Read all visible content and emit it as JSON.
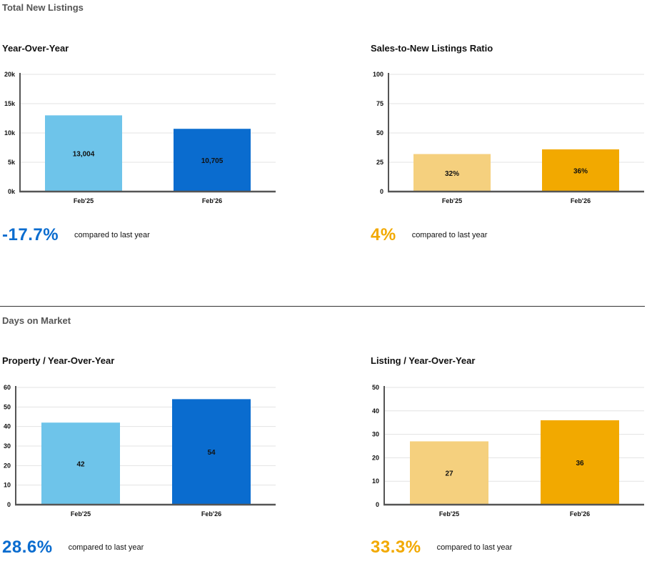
{
  "sections": {
    "new_listings": {
      "title": "Total New Listings"
    },
    "days_on_market": {
      "title": "Days on Market"
    }
  },
  "charts": {
    "yoy": {
      "title": "Year-Over-Year"
    },
    "ratio": {
      "title": "Sales-to-New Listings Ratio"
    },
    "property": {
      "title": "Property / Year-Over-Year"
    },
    "listing": {
      "title": "Listing / Year-Over-Year"
    }
  },
  "stats": {
    "yoy": {
      "value": "-17.7%",
      "text": "compared to last year",
      "color": "#0a6ccf"
    },
    "ratio": {
      "value": "4%",
      "text": "compared to last year",
      "color": "#f2a900"
    },
    "property": {
      "value": "28.6%",
      "text": "compared to last year",
      "color": "#0a6ccf"
    },
    "listing": {
      "value": "33.3%",
      "text": "compared to last year",
      "color": "#f2a900"
    }
  },
  "chart_data": [
    {
      "id": "yoy",
      "type": "bar",
      "title": "Year-Over-Year",
      "categories": [
        "Feb'25",
        "Feb'26"
      ],
      "values": [
        13004,
        10705
      ],
      "value_labels": [
        "13,004",
        "10,705"
      ],
      "ylim": [
        0,
        20000
      ],
      "yticks": [
        0,
        5000,
        10000,
        15000,
        20000
      ],
      "ytick_labels": [
        "0k",
        "5k",
        "10k",
        "15k",
        "20k"
      ],
      "colors": [
        "#6ec4ea",
        "#0a6ccf"
      ],
      "grid": true
    },
    {
      "id": "ratio",
      "type": "bar",
      "title": "Sales-to-New Listings Ratio",
      "categories": [
        "Feb'25",
        "Feb'26"
      ],
      "values": [
        32,
        36
      ],
      "value_labels": [
        "32%",
        "36%"
      ],
      "ylim": [
        0,
        100
      ],
      "yticks": [
        0,
        25,
        50,
        75,
        100
      ],
      "ytick_labels": [
        "0",
        "25",
        "50",
        "75",
        "100"
      ],
      "colors": [
        "#f5d07e",
        "#f2a900"
      ],
      "grid": true
    },
    {
      "id": "property",
      "type": "bar",
      "title": "Property / Year-Over-Year",
      "categories": [
        "Feb'25",
        "Feb'26"
      ],
      "values": [
        42,
        54
      ],
      "value_labels": [
        "42",
        "54"
      ],
      "ylim": [
        0,
        60
      ],
      "yticks": [
        0,
        10,
        20,
        30,
        40,
        50,
        60
      ],
      "ytick_labels": [
        "0",
        "10",
        "20",
        "30",
        "40",
        "50",
        "60"
      ],
      "colors": [
        "#6ec4ea",
        "#0a6ccf"
      ],
      "grid": true
    },
    {
      "id": "listing",
      "type": "bar",
      "title": "Listing / Year-Over-Year",
      "categories": [
        "Feb'25",
        "Feb'26"
      ],
      "values": [
        27,
        36
      ],
      "value_labels": [
        "27",
        "36"
      ],
      "ylim": [
        0,
        50
      ],
      "yticks": [
        0,
        10,
        20,
        30,
        40,
        50
      ],
      "ytick_labels": [
        "0",
        "10",
        "20",
        "30",
        "40",
        "50"
      ],
      "colors": [
        "#f5d07e",
        "#f2a900"
      ],
      "grid": true
    }
  ]
}
